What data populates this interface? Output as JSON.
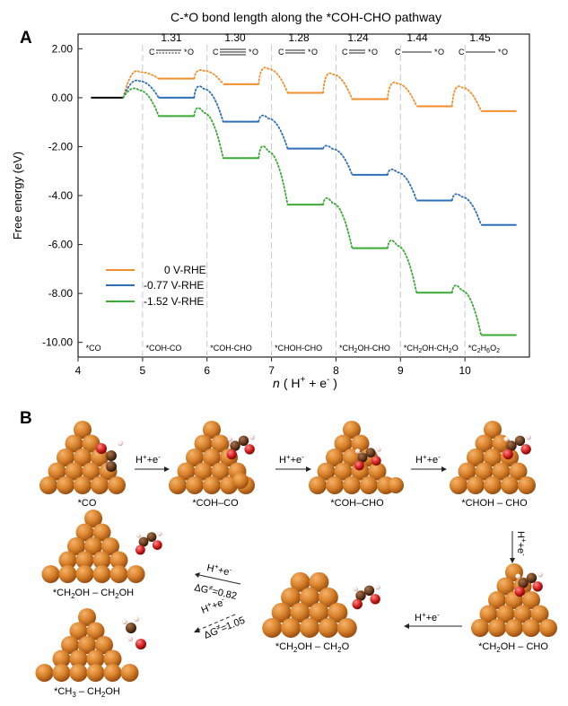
{
  "panel_a": {
    "letter": "A",
    "top_title": "C-*O bond length along the *COH-CHO pathway",
    "bond_lengths": [
      "1.31",
      "1.30",
      "1.28",
      "1.24",
      "1.44",
      "1.45"
    ],
    "bond_atom_c": "C",
    "bond_atom_o": "O"
  },
  "panel_b": {
    "letter": "B",
    "step_label": "H⁺+e⁻",
    "step_label_h": "H",
    "step_label_rest": "+e",
    "step_label_plus": "+",
    "step_label_minus": "-",
    "dg1": "ΔG≠=0.82",
    "dg2": "ΔG≠=1.05",
    "dg_prefix": "ΔG",
    "dg_sup": "≠",
    "dg1_value": "=0.82",
    "dg2_value": "=1.05",
    "labels": {
      "co": "*CO",
      "coh_co": "*COH–CO",
      "coh_cho": "*COH–CHO",
      "choh_cho": "*CHOH – CHO",
      "ch2oh_ch2oh_1": "*CH",
      "ch2oh_ch2oh_2": "OH – CH",
      "ch2oh_ch2oh_3": "OH",
      "ch2oh_ch2o_1": "*CH",
      "ch2oh_ch2o_2": "OH – CH",
      "ch2oh_ch2o_3": "O",
      "ch2oh_cho_1": "*CH",
      "ch2oh_cho_2": "OH – CHO",
      "ch3_ch2oh_1": "*CH",
      "ch3_ch2oh_2": " – CH",
      "ch3_ch2oh_3": "OH",
      "sub2": "2",
      "sub3": "3"
    }
  },
  "colors": {
    "v0": "#f28e2b",
    "v077": "#2e6fb8",
    "v152": "#3aaa35",
    "ref": "#000000",
    "atom_cu": "#d9822b",
    "atom_cu_light": "#f5b36a",
    "atom_cu_dark": "#9a4f12",
    "atom_c": "#6b3e1f",
    "atom_o": "#d62020",
    "atom_h": "#f3dede"
  },
  "chart_data": {
    "type": "line",
    "ylabel": "Free energy (eV)",
    "xlabel": "n ( H+ + e- )",
    "xlabel_n": "n",
    "xlabel_rest": "( H",
    "xlabel_sup": "+",
    "xlabel_mid": " + e",
    "xlabel_sup2": "-",
    "xlabel_end": " )",
    "xlim": [
      4,
      11
    ],
    "ylim": [
      -10.6,
      2.6
    ],
    "yticks": [
      2.0,
      0.0,
      -2.0,
      -4.0,
      -6.0,
      -8.0,
      -10.0
    ],
    "ytick_labels": [
      "2.00",
      "0.00",
      "-2.00",
      "-4.00",
      "-6.00",
      "-8.00",
      "-10.00"
    ],
    "xticks": [
      4,
      5,
      6,
      7,
      8,
      9,
      10
    ],
    "xtick_labels": [
      "4",
      "5",
      "6",
      "7",
      "8",
      "9",
      "10"
    ],
    "separators": [
      5,
      6,
      7,
      8,
      9,
      10
    ],
    "intermediates": [
      "*CO",
      "*COH-CO",
      "*COH-CHO",
      "*CHOH-CHO",
      "*CH2OH-CHO",
      "*CH2OH-CH2O",
      "*C2H6O2"
    ],
    "intermediate_label_parts": [
      [
        "*CO"
      ],
      [
        "*COH-CO"
      ],
      [
        "*COH-CHO"
      ],
      [
        "*CHOH-CHO"
      ],
      [
        "*CH",
        "2",
        "OH-CHO"
      ],
      [
        "*CH",
        "2",
        "OH-CH",
        "2",
        "O"
      ],
      [
        "*C",
        "2",
        "H",
        "6",
        "O",
        "2"
      ]
    ],
    "reference": {
      "value": 0.0
    },
    "series": [
      {
        "name": "0 V-RHE",
        "levels": [
          0.0,
          0.78,
          0.55,
          0.2,
          -0.06,
          -0.35,
          -0.55
        ],
        "barriers": [
          1.05,
          1.1,
          1.18,
          0.95,
          0.58,
          0.42
        ]
      },
      {
        "name": "-0.77 V-RHE",
        "levels": [
          0.0,
          0.0,
          -0.98,
          -2.08,
          -3.15,
          -4.2,
          -5.2
        ],
        "barriers": [
          0.68,
          0.36,
          -0.85,
          -2.1,
          -3.05,
          -4.05
        ]
      },
      {
        "name": "-1.52 V-RHE",
        "levels": [
          0.0,
          -0.75,
          -2.47,
          -4.37,
          -6.15,
          -7.97,
          -9.7
        ],
        "barriers": [
          0.3,
          -0.62,
          -2.2,
          -4.32,
          -6.05,
          -7.88
        ]
      }
    ],
    "legend_location": "lower-left",
    "grid": false
  }
}
